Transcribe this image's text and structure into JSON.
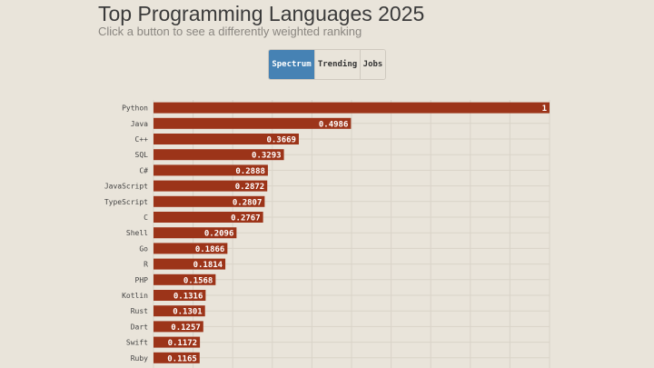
{
  "header": {
    "title": "Top Programming Languages 2025",
    "subtitle": "Click a button to see a differently weighted ranking"
  },
  "buttons": [
    {
      "label": "Spectrum",
      "active": true
    },
    {
      "label": "Trending",
      "active": false
    },
    {
      "label": "Jobs",
      "active": false
    }
  ],
  "colors": {
    "background": "#e9e4da",
    "bar": "#9c3419",
    "active_button": "#4682b4",
    "gridline": "#d9d3c8"
  },
  "chart_data": {
    "type": "bar",
    "orientation": "horizontal",
    "categories": [
      "Python",
      "Java",
      "C++",
      "SQL",
      "C#",
      "JavaScript",
      "TypeScript",
      "C",
      "Shell",
      "Go",
      "R",
      "PHP",
      "Kotlin",
      "Rust",
      "Dart",
      "Swift",
      "Ruby"
    ],
    "values": [
      1,
      0.4986,
      0.3669,
      0.3293,
      0.2888,
      0.2872,
      0.2807,
      0.2767,
      0.2096,
      0.1866,
      0.1814,
      0.1568,
      0.1316,
      0.1301,
      0.1257,
      0.1172,
      0.1165
    ],
    "value_labels": [
      "1",
      "0.4986",
      "0.3669",
      "0.3293",
      "0.2888",
      "0.2872",
      "0.2807",
      "0.2767",
      "0.2096",
      "0.1866",
      "0.1814",
      "0.1568",
      "0.1316",
      "0.1301",
      "0.1257",
      "0.1172",
      "0.1165"
    ],
    "xlim": [
      0,
      1
    ],
    "grid": true,
    "title": "Top Programming Languages 2025",
    "xlabel": "",
    "ylabel": ""
  }
}
